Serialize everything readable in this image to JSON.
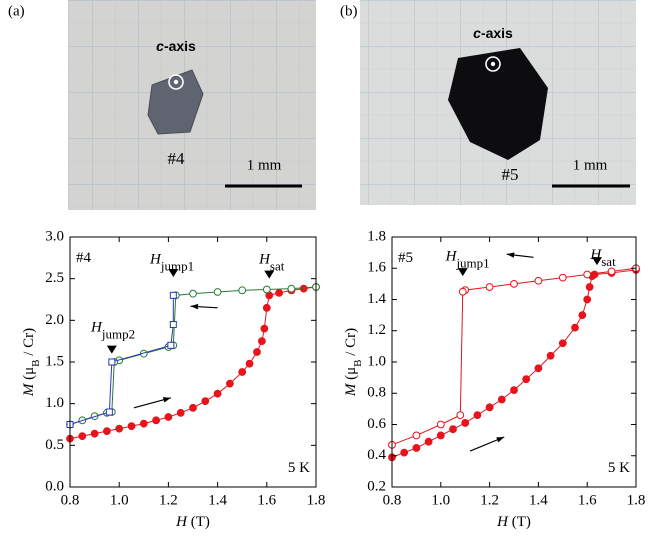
{
  "panels": [
    {
      "label": "(a)",
      "axis_symbol": "c",
      "axis_label": "-axis",
      "sample": "#4",
      "scale": "1 mm"
    },
    {
      "label": "(b)",
      "axis_symbol": "c",
      "axis_label": "-axis",
      "sample": "#5",
      "scale": "1 mm"
    }
  ],
  "chart_data": [
    {
      "type": "scatter",
      "xlabel": {
        "symbol": "H",
        "unit": " (T)"
      },
      "ylabel": {
        "symbol": "M",
        "unit_pre": " (μ",
        "unit_sub": "B",
        "unit_post": " / Cr)"
      },
      "xlim": [
        0.8,
        1.8
      ],
      "xticks": [
        0.8,
        {
          "value": 1,
          "label": "1.0"
        },
        1.2,
        1.4,
        1.6,
        1.8
      ],
      "ylim": [
        0,
        3
      ],
      "yticks": [
        {
          "value": 0,
          "label": "0.0"
        },
        0.5,
        {
          "value": 1,
          "label": "1.0"
        },
        1.5,
        {
          "value": 2,
          "label": "2.0"
        },
        2.5,
        {
          "value": 3,
          "label": "3.0"
        }
      ],
      "series": [
        {
          "color": "#e8131b",
          "marker": "filled",
          "x": [
            0.8,
            0.85,
            0.9,
            0.95,
            1.0,
            1.05,
            1.1,
            1.15,
            1.2,
            1.25,
            1.3,
            1.35,
            1.4,
            1.45,
            1.5,
            1.53,
            1.56,
            1.58,
            1.59,
            1.6,
            1.61,
            1.65,
            1.7,
            1.75,
            1.8
          ],
          "values": [
            0.58,
            0.61,
            0.64,
            0.67,
            0.7,
            0.73,
            0.76,
            0.8,
            0.84,
            0.89,
            0.95,
            1.03,
            1.12,
            1.24,
            1.38,
            1.48,
            1.62,
            1.75,
            1.9,
            2.15,
            2.3,
            2.33,
            2.36,
            2.38,
            2.4
          ]
        },
        {
          "color": "#2a7a3a",
          "marker": "open",
          "x": [
            1.8,
            1.7,
            1.6,
            1.5,
            1.4,
            1.3,
            1.23,
            1.22,
            1.2,
            1.1,
            1.0,
            0.98,
            0.97,
            0.95,
            0.9,
            0.85,
            0.8
          ],
          "values": [
            2.4,
            2.38,
            2.37,
            2.36,
            2.34,
            2.32,
            2.3,
            1.7,
            1.68,
            1.6,
            1.52,
            1.5,
            0.9,
            0.89,
            0.85,
            0.8,
            0.75
          ]
        },
        {
          "color": "#2b3bb8",
          "marker": "square-open",
          "x": [
            1.22,
            1.22,
            1.21,
            0.97,
            0.96,
            0.8
          ],
          "values": [
            2.3,
            1.95,
            1.7,
            1.5,
            0.9,
            0.75
          ]
        }
      ],
      "annotations": [
        {
          "text": "#4"
        },
        {
          "text": "H",
          "sub": "jump1"
        },
        {
          "text": "H",
          "sub": "jump2"
        },
        {
          "text": "H",
          "sub": "sat"
        },
        {
          "text": "5 K"
        }
      ]
    },
    {
      "type": "scatter",
      "xlabel": {
        "symbol": "H",
        "unit": " (T)"
      },
      "ylabel": {
        "symbol": "M",
        "unit_pre": " (μ",
        "unit_sub": "B",
        "unit_post": " / Cr)"
      },
      "xlim": [
        0.8,
        1.8
      ],
      "xticks": [
        0.8,
        {
          "value": 1,
          "label": "1.0"
        },
        1.2,
        1.4,
        1.6,
        1.8
      ],
      "ylim": [
        0.2,
        1.8
      ],
      "yticks": [
        0.2,
        0.4,
        0.6,
        0.8,
        {
          "value": 1,
          "label": "1.0"
        },
        1.2,
        1.4,
        1.6,
        1.8
      ],
      "series": [
        {
          "color": "#e8131b",
          "marker": "filled",
          "x": [
            0.8,
            0.85,
            0.9,
            0.95,
            1.0,
            1.05,
            1.1,
            1.15,
            1.2,
            1.25,
            1.3,
            1.35,
            1.4,
            1.45,
            1.5,
            1.55,
            1.58,
            1.6,
            1.61,
            1.62,
            1.63,
            1.7,
            1.8
          ],
          "values": [
            0.39,
            0.42,
            0.45,
            0.49,
            0.53,
            0.57,
            0.61,
            0.66,
            0.71,
            0.76,
            0.82,
            0.89,
            0.96,
            1.04,
            1.12,
            1.22,
            1.3,
            1.4,
            1.48,
            1.55,
            1.56,
            1.57,
            1.59
          ]
        },
        {
          "color": "#e8131b",
          "marker": "open",
          "x": [
            1.8,
            1.7,
            1.6,
            1.5,
            1.4,
            1.3,
            1.2,
            1.1,
            1.09,
            1.08,
            1.0,
            0.9,
            0.8
          ],
          "values": [
            1.6,
            1.58,
            1.56,
            1.54,
            1.52,
            1.5,
            1.48,
            1.46,
            1.45,
            0.66,
            0.6,
            0.53,
            0.47
          ]
        }
      ],
      "annotations": [
        {
          "text": "#5"
        },
        {
          "text": "H",
          "sub": "jump1"
        },
        {
          "text": "H",
          "sub": "sat"
        },
        {
          "text": "5 K"
        }
      ]
    }
  ]
}
